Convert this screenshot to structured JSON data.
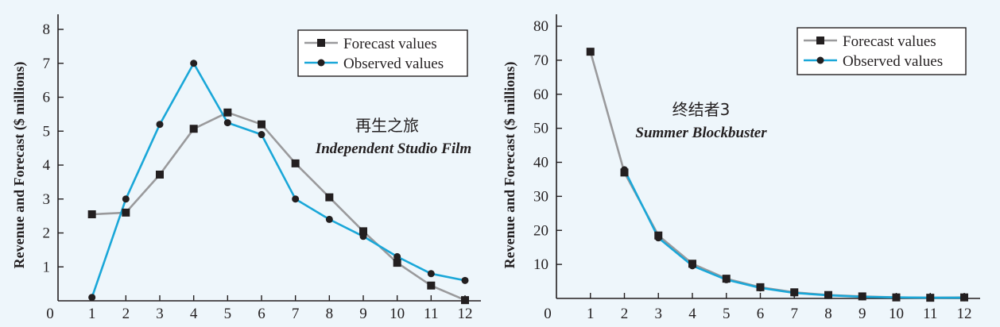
{
  "colors": {
    "forecast": "#9a9a9c",
    "observed": "#1aa7d8",
    "marker": "#231f20",
    "background": "#eef6fb"
  },
  "chart_data": [
    {
      "type": "line",
      "title": "再生之旅",
      "subtitle": "Independent Studio Film",
      "ylabel": "Revenue and Forecast ($ millions)",
      "xlabel": "",
      "x": [
        1,
        2,
        3,
        4,
        5,
        6,
        7,
        8,
        9,
        10,
        11,
        12
      ],
      "x_tick_labels": [
        "0",
        "1",
        "2",
        "3",
        "4",
        "5",
        "6",
        "7",
        "8",
        "9",
        "10",
        "11",
        "12"
      ],
      "y_tick_labels": [
        "1",
        "2",
        "3",
        "4",
        "5",
        "6",
        "7",
        "8"
      ],
      "xlim": [
        0,
        12
      ],
      "ylim": [
        0,
        8
      ],
      "grid": false,
      "legend_position": "top-right",
      "series": [
        {
          "name": "Forecast values",
          "marker": "square",
          "color": "#9a9a9c",
          "values": [
            2.55,
            2.6,
            3.72,
            5.07,
            5.55,
            5.2,
            4.05,
            3.05,
            2.05,
            1.12,
            0.45,
            0.02
          ]
        },
        {
          "name": "Observed values",
          "marker": "circle",
          "color": "#1aa7d8",
          "values": [
            0.1,
            3.0,
            5.2,
            7.0,
            5.25,
            4.9,
            3.0,
            2.4,
            1.9,
            1.3,
            0.8,
            0.6
          ]
        }
      ]
    },
    {
      "type": "line",
      "title": "终结者3",
      "subtitle": "Summer Blockbuster",
      "ylabel": "Revenue and Forecast ($ millions)",
      "xlabel": "",
      "x": [
        1,
        2,
        3,
        4,
        5,
        6,
        7,
        8,
        9,
        10,
        11,
        12
      ],
      "x_tick_labels": [
        "0",
        "1",
        "2",
        "3",
        "4",
        "5",
        "6",
        "7",
        "8",
        "9",
        "10",
        "11",
        "12"
      ],
      "y_tick_labels": [
        "10",
        "20",
        "30",
        "40",
        "50",
        "60",
        "70",
        "80"
      ],
      "xlim": [
        0,
        12
      ],
      "ylim": [
        0,
        80
      ],
      "grid": false,
      "legend_position": "top-right",
      "series": [
        {
          "name": "Forecast values",
          "marker": "square",
          "color": "#9a9a9c",
          "values": [
            72.5,
            37.0,
            18.5,
            10.2,
            5.8,
            3.3,
            1.8,
            1.0,
            0.6,
            0.3,
            0.2,
            0.3
          ]
        },
        {
          "name": "Observed values",
          "marker": "circle",
          "color": "#1aa7d8",
          "values": [
            null,
            37.8,
            17.8,
            9.6,
            5.5,
            3.1,
            1.6,
            0.9,
            0.5,
            0.3,
            0.2,
            0.2
          ]
        }
      ]
    }
  ]
}
